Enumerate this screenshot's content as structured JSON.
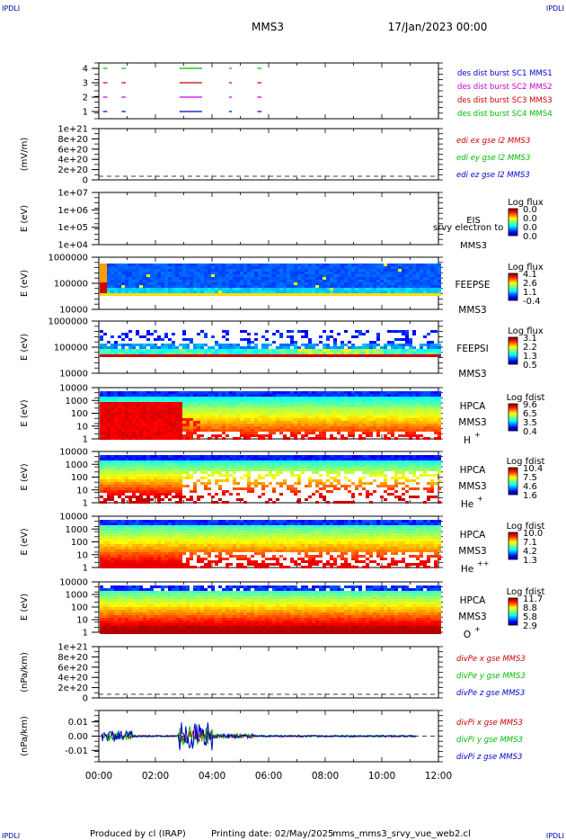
{
  "header": {
    "corner_tl": "IPDLI",
    "corner_tr": "IPDLI",
    "corner_bl": "IPDLI",
    "corner_br": "IPDLI",
    "mission": "MMS3",
    "date": "17/Jan/2023 00:00"
  },
  "footer": {
    "produced_by": "Produced by cl (IRAP)",
    "printing_date": "Printing date: 02/May/2025",
    "filename": "mms_mms3_srvy_vue_web2.cl"
  },
  "colors": {
    "blue": "#0000cc",
    "magenta": "#cc00cc",
    "red": "#cc0000",
    "green": "#00bb00"
  },
  "chart_data": [
    {
      "id": "burst",
      "type": "line",
      "yticks": [
        "1",
        "2",
        "3",
        "4"
      ],
      "legend": [
        "des dist burst SC1 MMS1",
        "des dist burst SC2 MMS2",
        "des dist burst SC3 MMS3",
        "des dist burst SC4 MMS4"
      ],
      "segments_hours": [
        [
          0.15,
          0.3
        ],
        [
          0.8,
          0.95
        ],
        [
          2.85,
          3.65
        ],
        [
          4.6,
          4.7
        ],
        [
          5.6,
          5.75
        ]
      ]
    },
    {
      "id": "edi",
      "type": "line",
      "ylabel": "(mV/m)",
      "yticks": [
        "1e+21",
        "8e+20",
        "6e+20",
        "4e+20",
        "2e+20",
        "0"
      ],
      "legend": [
        "edi ex gse l2 MMS3",
        "edi ey gse l2 MMS3",
        "edi ez gse l2 MMS3"
      ]
    },
    {
      "id": "eis",
      "type": "heatmap",
      "ylabel": "E (eV)",
      "yticks": [
        "1e+07",
        "1e+06",
        "1e+05",
        "1e+04"
      ],
      "label1": "EIS",
      "label2": "srvy electron to",
      "label3": "MMS3",
      "cbar_title": "Log flux",
      "cbar_ticks": [
        "0.0",
        "0.0",
        "0.0",
        "0.0"
      ]
    },
    {
      "id": "feepse",
      "type": "heatmap",
      "ylabel": "E (eV)",
      "yticks": [
        "1000000",
        "100000",
        "10000"
      ],
      "label1": "FEEPSE",
      "label2": "MMS3",
      "cbar_title": "Log flux",
      "cbar_ticks": [
        "4.1",
        "2.6",
        "1.1",
        "-0.4"
      ]
    },
    {
      "id": "feepsi",
      "type": "heatmap",
      "ylabel": "E (eV)",
      "yticks": [
        "1000000",
        "100000",
        "10000"
      ],
      "label1": "FEEPSI",
      "label2": "MMS3",
      "cbar_title": "Log flux",
      "cbar_ticks": [
        "3.1",
        "2.2",
        "1.3",
        "0.5"
      ]
    },
    {
      "id": "hpca_h",
      "type": "heatmap",
      "ylabel": "E (eV)",
      "yticks": [
        "10000",
        "1000",
        "100",
        "10",
        "1"
      ],
      "label1": "HPCA",
      "label2": "MMS3",
      "species": "H",
      "species_sup": "+",
      "cbar_title": "Log fdist",
      "cbar_ticks": [
        "9.6",
        "6.5",
        "3.5",
        "0.4"
      ]
    },
    {
      "id": "hpca_he",
      "type": "heatmap",
      "ylabel": "E (eV)",
      "yticks": [
        "10000",
        "1000",
        "100",
        "10",
        "1"
      ],
      "label1": "HPCA",
      "label2": "MMS3",
      "species": "He",
      "species_sup": "+",
      "cbar_title": "Log fdist",
      "cbar_ticks": [
        "10.4",
        "7.5",
        "4.6",
        "1.6"
      ]
    },
    {
      "id": "hpca_hepp",
      "type": "heatmap",
      "ylabel": "E (eV)",
      "yticks": [
        "10000",
        "1000",
        "100",
        "10",
        "1"
      ],
      "label1": "HPCA",
      "label2": "MMS3",
      "species": "He",
      "species_sup": "++",
      "cbar_title": "Log fdist",
      "cbar_ticks": [
        "10.0",
        "7.1",
        "4.2",
        "1.3"
      ]
    },
    {
      "id": "hpca_o",
      "type": "heatmap",
      "ylabel": "E (eV)",
      "yticks": [
        "10000",
        "1000",
        "100",
        "10",
        "1"
      ],
      "label1": "HPCA",
      "label2": "MMS3",
      "species": "O",
      "species_sup": "+",
      "cbar_title": "Log fdist",
      "cbar_ticks": [
        "11.7",
        "8.8",
        "5.8",
        "2.9"
      ]
    },
    {
      "id": "divpe",
      "type": "line",
      "ylabel": "(nPa/km)",
      "yticks": [
        "1e+21",
        "8e+20",
        "6e+20",
        "4e+20",
        "2e+20",
        "0"
      ],
      "legend": [
        "divPe x gse MMS3",
        "divPe y gse MMS3",
        "divPe z gse MMS3"
      ]
    },
    {
      "id": "divpi",
      "type": "line",
      "ylabel": "(nPa/km)",
      "yticks": [
        "0.01",
        "0.00",
        "-0.01"
      ],
      "ylim": [
        -0.018,
        0.018
      ],
      "legend": [
        "divPi x gse MMS3",
        "divPi y gse MMS3",
        "divPi z gse MMS3"
      ]
    }
  ],
  "xaxis": {
    "ticks": [
      "00:00",
      "02:00",
      "04:00",
      "06:00",
      "08:00",
      "10:00",
      "12:00"
    ],
    "range_hours": [
      0,
      12
    ]
  }
}
